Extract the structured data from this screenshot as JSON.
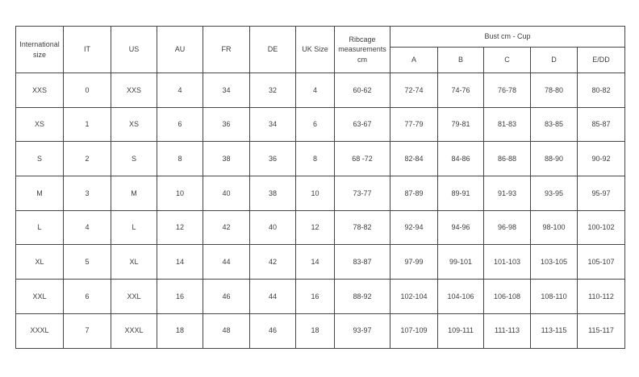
{
  "colors": {
    "background": "#ffffff",
    "border": "#454545",
    "text": "#3d3d3d"
  },
  "chart_data": {
    "type": "table",
    "span_headers": [
      "International size",
      "IT",
      "US",
      "AU",
      "FR",
      "DE",
      "UK Size",
      "Ribcage measurements cm"
    ],
    "group_header": "Bust cm - Cup",
    "cup_headers": [
      "A",
      "B",
      "C",
      "D",
      "E/DD"
    ],
    "rows": [
      [
        "XXS",
        "0",
        "XXS",
        "4",
        "34",
        "32",
        "4",
        "60-62",
        "72-74",
        "74-76",
        "76-78",
        "78-80",
        "80-82"
      ],
      [
        "XS",
        "1",
        "XS",
        "6",
        "36",
        "34",
        "6",
        "63-67",
        "77-79",
        "79-81",
        "81-83",
        "83-85",
        "85-87"
      ],
      [
        "S",
        "2",
        "S",
        "8",
        "38",
        "36",
        "8",
        "68 -72",
        "82-84",
        "84-86",
        "86-88",
        "88-90",
        "90-92"
      ],
      [
        "M",
        "3",
        "M",
        "10",
        "40",
        "38",
        "10",
        "73-77",
        "87-89",
        "89-91",
        "91-93",
        "93-95",
        "95-97"
      ],
      [
        "L",
        "4",
        "L",
        "12",
        "42",
        "40",
        "12",
        "78-82",
        "92-94",
        "94-96",
        "96-98",
        "98-100",
        "100-102"
      ],
      [
        "XL",
        "5",
        "XL",
        "14",
        "44",
        "42",
        "14",
        "83-87",
        "97-99",
        "99-101",
        "101-103",
        "103-105",
        "105-107"
      ],
      [
        "XXL",
        "6",
        "XXL",
        "16",
        "46",
        "44",
        "16",
        "88-92",
        "102-104",
        "104-106",
        "106-108",
        "108-110",
        "110-112"
      ],
      [
        "XXXL",
        "7",
        "XXXL",
        "18",
        "48",
        "46",
        "18",
        "93-97",
        "107-109",
        "109-111",
        "111-113",
        "113-115",
        "115-117"
      ]
    ]
  }
}
